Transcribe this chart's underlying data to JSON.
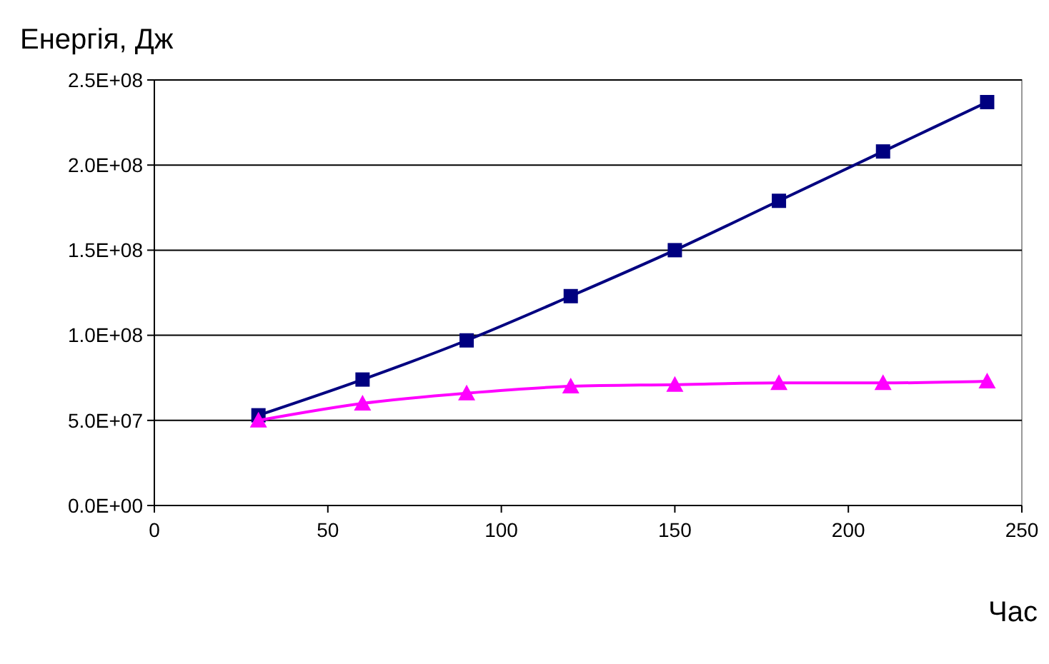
{
  "chart_data": {
    "type": "line",
    "ylabel": "Енергія, Дж",
    "xlabel": "Час",
    "x": [
      30,
      60,
      90,
      120,
      150,
      180,
      210,
      240
    ],
    "series": [
      {
        "color": "#000080",
        "marker": "square",
        "values": [
          53000000.0,
          74000000.0,
          97000000.0,
          123000000.0,
          150000000.0,
          179000000.0,
          208000000.0,
          237000000.0
        ]
      },
      {
        "color": "#ff00ff",
        "marker": "triangle",
        "values": [
          50000000.0,
          60000000.0,
          66000000.0,
          70000000.0,
          71000000.0,
          72000000.0,
          72000000.0,
          73000000.0
        ]
      }
    ],
    "xlim": [
      0,
      250
    ],
    "xticks": [
      0,
      50,
      100,
      150,
      200,
      250
    ],
    "ylim": [
      0,
      250000000.0
    ],
    "yticks": [
      {
        "value": 0,
        "label": "0.0E+00"
      },
      {
        "value": 50000000.0,
        "label": "5.0E+07"
      },
      {
        "value": 100000000.0,
        "label": "1.0E+08"
      },
      {
        "value": 150000000.0,
        "label": "1.5E+08"
      },
      {
        "value": 200000000.0,
        "label": "2.0E+08"
      },
      {
        "value": 250000000.0,
        "label": "2.5E+08"
      }
    ],
    "grid": "y",
    "line_style": "solid"
  }
}
